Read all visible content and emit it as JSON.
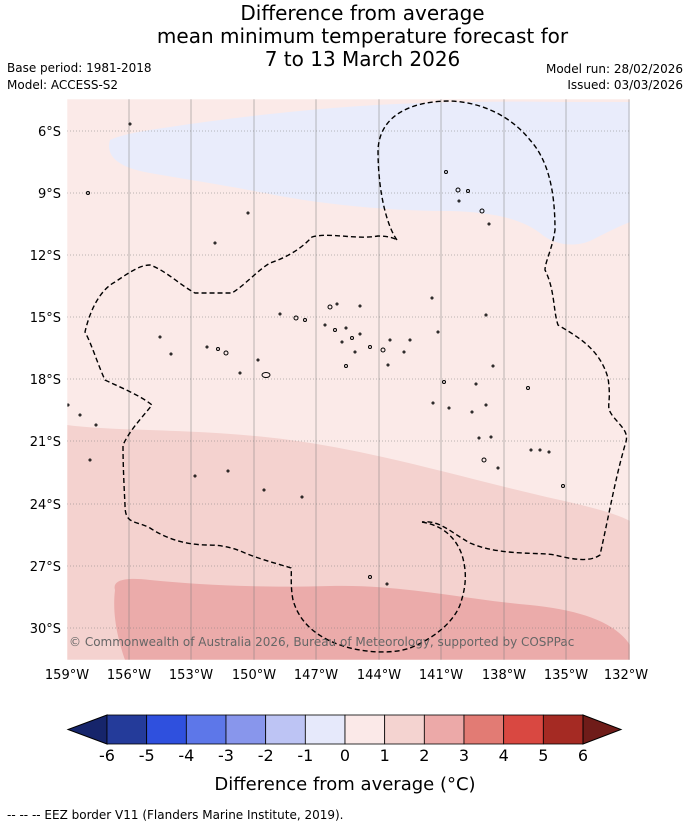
{
  "header": {
    "title_lines": [
      "Difference from average",
      "mean minimum temperature forecast for",
      "7 to 13 March 2026"
    ],
    "base_period": "Base period: 1981-2018",
    "model": "Model: ACCESS-S2",
    "model_run": "Model run: 28/02/2026",
    "issued": "Issued: 03/03/2026"
  },
  "map": {
    "copyright": "© Commonwealth of Australia 2026, Bureau of Meteorology, supported by COSPPac",
    "lat_labels": [
      "6°S",
      "9°S",
      "12°S",
      "15°S",
      "18°S",
      "21°S",
      "24°S",
      "27°S",
      "30°S"
    ],
    "lon_labels": [
      "159°W",
      "156°W",
      "153°W",
      "150°W",
      "147°W",
      "144°W",
      "141°W",
      "138°W",
      "135°W",
      "132°W"
    ],
    "region_colors": {
      "cool_minus1": "#e9ecfb",
      "warm_0_1": "#fbeae8",
      "warm_1_2": "#f4d2cf",
      "warm_2_3": "#ebabaa"
    },
    "boundary_line": "EEZ dashed border"
  },
  "colorbar": {
    "tick_labels": [
      "-6",
      "-5",
      "-4",
      "-3",
      "-2",
      "-1",
      "0",
      "1",
      "2",
      "3",
      "4",
      "5",
      "6"
    ],
    "colors": [
      "#243b9a",
      "#2f50de",
      "#5d77e9",
      "#8896ec",
      "#bdc4f4",
      "#e6e9fb",
      "#fbe9e8",
      "#f4d3d0",
      "#eca9a8",
      "#e27b74",
      "#d94841",
      "#a52a23"
    ],
    "under_color": "#16256b",
    "over_color": "#6f1c19",
    "label": "Difference from average (°C)"
  },
  "footer": {
    "text": "--  --  -- EEZ border V11 (Flanders Marine Institute, 2019)."
  }
}
